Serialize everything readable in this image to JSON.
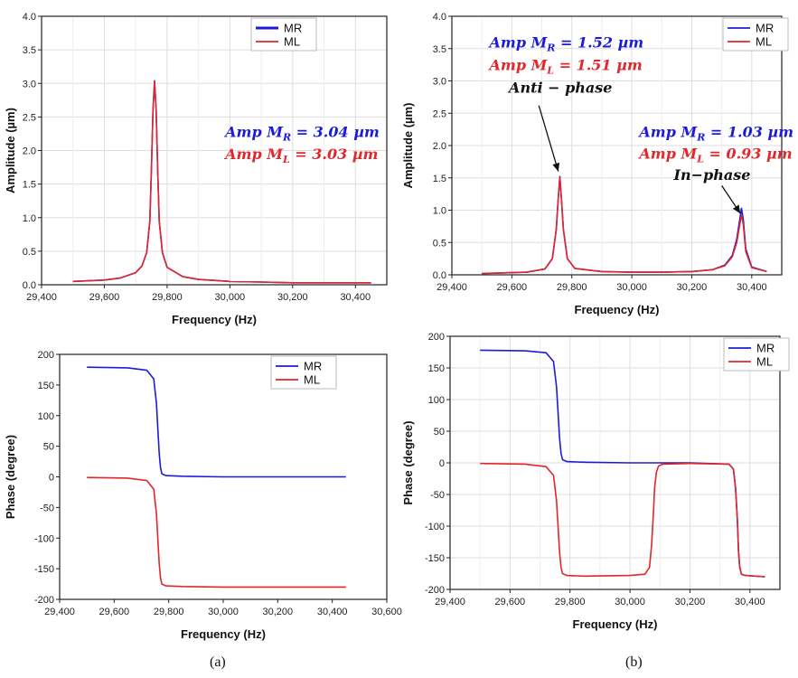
{
  "colors": {
    "mr": "#1c1cd8",
    "ml": "#e0272b",
    "grid": "#dddddd",
    "frame": "#222222"
  },
  "captions": {
    "a": "(a)",
    "b": "(b)"
  },
  "chart_data": [
    {
      "id": "a-amp",
      "type": "line",
      "xlabel": "Frequency (Hz)",
      "ylabel": "Amplitude (µm)",
      "xlim": [
        29400,
        30500
      ],
      "ylim": [
        0,
        4
      ],
      "xticks": [
        29400,
        29600,
        29800,
        30000,
        30200,
        30400
      ],
      "xtick_labels": [
        "29,400",
        "29,600",
        "29,800",
        "30,000",
        "30,200",
        "30,400"
      ],
      "yticks": [
        0,
        0.5,
        1,
        1.5,
        2,
        2.5,
        3,
        3.5,
        4
      ],
      "ytick_labels": [
        "0.0",
        "0.5",
        "1.0",
        "1.5",
        "2.0",
        "2.5",
        "3.0",
        "3.5",
        "4.0"
      ],
      "grid": true,
      "legend": "top-right",
      "series": [
        {
          "name": "MR",
          "color": "#1c1cd8",
          "x": [
            29500,
            29600,
            29650,
            29700,
            29720,
            29735,
            29745,
            29750,
            29755,
            29760,
            29765,
            29770,
            29775,
            29785,
            29800,
            29850,
            29900,
            30000,
            30100,
            30200,
            30300,
            30450
          ],
          "y": [
            0.05,
            0.07,
            0.1,
            0.18,
            0.28,
            0.48,
            0.95,
            1.7,
            2.6,
            3.04,
            2.6,
            1.7,
            0.95,
            0.48,
            0.26,
            0.12,
            0.08,
            0.05,
            0.04,
            0.03,
            0.03,
            0.03
          ]
        },
        {
          "name": "ML",
          "color": "#e0272b",
          "x": [
            29500,
            29600,
            29650,
            29700,
            29720,
            29735,
            29745,
            29750,
            29755,
            29760,
            29765,
            29770,
            29775,
            29785,
            29800,
            29850,
            29900,
            30000,
            30100,
            30200,
            30300,
            30450
          ],
          "y": [
            0.05,
            0.07,
            0.1,
            0.18,
            0.28,
            0.48,
            0.95,
            1.7,
            2.6,
            3.03,
            2.6,
            1.7,
            0.95,
            0.48,
            0.26,
            0.12,
            0.08,
            0.05,
            0.04,
            0.03,
            0.03,
            0.03
          ]
        }
      ],
      "annotations": [
        {
          "text": "Amp M",
          "sub": "R",
          "tail": " = 3.04 µm",
          "color": "#1c1cd8",
          "x": 29985,
          "y": 2.2
        },
        {
          "text": "Amp M",
          "sub": "L",
          "tail": " = 3.03 µm",
          "color": "#e0272b",
          "x": 29985,
          "y": 1.87
        }
      ]
    },
    {
      "id": "b-amp",
      "type": "line",
      "xlabel": "Frequency (Hz)",
      "ylabel": "Amplitude (µm)",
      "xlim": [
        29400,
        30500
      ],
      "ylim": [
        0,
        4
      ],
      "xticks": [
        29400,
        29600,
        29800,
        30000,
        30200,
        30400
      ],
      "xtick_labels": [
        "29,400",
        "29,600",
        "29,800",
        "30,000",
        "30,200",
        "30,400"
      ],
      "yticks": [
        0,
        0.5,
        1,
        1.5,
        2,
        2.5,
        3,
        3.5,
        4
      ],
      "ytick_labels": [
        "0.0",
        "0.5",
        "1.0",
        "1.5",
        "2.0",
        "2.5",
        "3.0",
        "3.5",
        "4.0"
      ],
      "grid": true,
      "legend": "top-right",
      "series": [
        {
          "name": "MR",
          "color": "#1c1cd8",
          "x": [
            29500,
            29650,
            29710,
            29735,
            29748,
            29755,
            29760,
            29765,
            29772,
            29785,
            29810,
            29900,
            30000,
            30100,
            30200,
            30270,
            30310,
            30335,
            30350,
            30360,
            30366,
            30372,
            30380,
            30400,
            30450
          ],
          "y": [
            0.02,
            0.04,
            0.09,
            0.25,
            0.7,
            1.2,
            1.52,
            1.2,
            0.7,
            0.25,
            0.1,
            0.05,
            0.04,
            0.04,
            0.05,
            0.08,
            0.15,
            0.3,
            0.55,
            0.85,
            1.03,
            0.85,
            0.4,
            0.12,
            0.05
          ]
        },
        {
          "name": "ML",
          "color": "#e0272b",
          "x": [
            29500,
            29650,
            29710,
            29735,
            29748,
            29755,
            29760,
            29765,
            29772,
            29785,
            29810,
            29900,
            30000,
            30100,
            30200,
            30270,
            30310,
            30335,
            30350,
            30360,
            30366,
            30372,
            30380,
            30400,
            30450
          ],
          "y": [
            0.02,
            0.04,
            0.09,
            0.25,
            0.7,
            1.2,
            1.51,
            1.2,
            0.7,
            0.25,
            0.1,
            0.05,
            0.04,
            0.04,
            0.05,
            0.08,
            0.14,
            0.28,
            0.5,
            0.77,
            0.93,
            0.77,
            0.36,
            0.11,
            0.05
          ]
        }
      ],
      "annotations": [
        {
          "text": "Amp M",
          "sub": "R",
          "tail": " = 1.52 µm",
          "color": "#1c1cd8",
          "x": 29525,
          "y": 3.52
        },
        {
          "text": "Amp M",
          "sub": "L",
          "tail": " = 1.51 µm",
          "color": "#e0272b",
          "x": 29525,
          "y": 3.17
        },
        {
          "text": "Anti − phase",
          "sub": "",
          "tail": "",
          "color": "#111111",
          "x": 29590,
          "y": 2.82
        },
        {
          "text": "Amp M",
          "sub": "R",
          "tail": " = 1.03 µm",
          "color": "#1c1cd8",
          "x": 30025,
          "y": 2.13
        },
        {
          "text": "Amp M",
          "sub": "L",
          "tail": " = 0.93 µm",
          "color": "#e0272b",
          "x": 30025,
          "y": 1.8
        },
        {
          "text": "In−phase",
          "sub": "",
          "tail": "",
          "color": "#111111",
          "x": 30140,
          "y": 1.47
        }
      ],
      "arrows": [
        {
          "from": [
            29690,
            2.62
          ],
          "to": [
            29755,
            1.6
          ]
        },
        {
          "from": [
            30300,
            1.38
          ],
          "to": [
            30362,
            0.95
          ]
        }
      ]
    },
    {
      "id": "a-phase",
      "type": "line",
      "xlabel": "Frequency (Hz)",
      "ylabel": "Phase (degree)",
      "xlim": [
        29400,
        30600
      ],
      "ylim": [
        -200,
        200
      ],
      "xticks": [
        29400,
        29600,
        29800,
        30000,
        30200,
        30400,
        30600
      ],
      "xtick_labels": [
        "29,400",
        "29,600",
        "29,800",
        "30,000",
        "30,200",
        "30,400",
        "30,600"
      ],
      "yticks": [
        -200,
        -150,
        -100,
        -50,
        0,
        50,
        100,
        150,
        200
      ],
      "ytick_labels": [
        "-200",
        "-150",
        "-100",
        "-50",
        "0",
        "50",
        "100",
        "150",
        "200"
      ],
      "grid": false,
      "legend": "top-right",
      "series": [
        {
          "name": "MR",
          "color": "#1c1cd8",
          "x": [
            29500,
            29650,
            29720,
            29745,
            29755,
            29760,
            29765,
            29770,
            29775,
            29790,
            29850,
            30000,
            30200,
            30450
          ],
          "y": [
            179,
            178,
            174,
            160,
            120,
            80,
            40,
            15,
            5,
            2,
            1,
            0,
            0,
            0
          ]
        },
        {
          "name": "ML",
          "color": "#e0272b",
          "x": [
            29500,
            29650,
            29720,
            29745,
            29755,
            29760,
            29765,
            29770,
            29775,
            29790,
            29850,
            30000,
            30200,
            30450
          ],
          "y": [
            -1,
            -2,
            -6,
            -20,
            -60,
            -100,
            -140,
            -165,
            -175,
            -178,
            -179,
            -180,
            -180,
            -180
          ]
        }
      ]
    },
    {
      "id": "b-phase",
      "type": "line",
      "xlabel": "Frequency (Hz)",
      "ylabel": "Phase (degree)",
      "xlim": [
        29400,
        30500
      ],
      "ylim": [
        -200,
        200
      ],
      "xticks": [
        29400,
        29600,
        29800,
        30000,
        30200,
        30400
      ],
      "xtick_labels": [
        "29,400",
        "29,600",
        "29,800",
        "30,000",
        "30,200",
        "30,400"
      ],
      "yticks": [
        -200,
        -150,
        -100,
        -50,
        0,
        50,
        100,
        150,
        200
      ],
      "ytick_labels": [
        "-200",
        "-150",
        "-100",
        "-50",
        "0",
        "50",
        "100",
        "150",
        "200"
      ],
      "grid": true,
      "legend": "top-right",
      "series": [
        {
          "name": "MR",
          "color": "#1c1cd8",
          "x": [
            29500,
            29650,
            29720,
            29745,
            29755,
            29760,
            29765,
            29770,
            29775,
            29790,
            29850,
            30000,
            30200,
            30330,
            30345,
            30352,
            30358,
            30362,
            30366,
            30372,
            30385,
            30450
          ],
          "y": [
            178,
            177,
            174,
            160,
            120,
            80,
            40,
            15,
            5,
            2,
            1,
            0,
            0,
            -2,
            -10,
            -40,
            -90,
            -140,
            -165,
            -176,
            -178,
            -180
          ]
        },
        {
          "name": "ML",
          "color": "#e0272b",
          "x": [
            29500,
            29650,
            29720,
            29745,
            29755,
            29760,
            29765,
            29770,
            29775,
            29790,
            29850,
            30000,
            30050,
            30065,
            30072,
            30078,
            30082,
            30088,
            30095,
            30110,
            30200,
            30330,
            30345,
            30352,
            30358,
            30362,
            30366,
            30372,
            30385,
            30450
          ],
          "y": [
            -1,
            -2,
            -6,
            -20,
            -60,
            -100,
            -140,
            -165,
            -175,
            -178,
            -179,
            -178,
            -176,
            -165,
            -130,
            -80,
            -40,
            -15,
            -5,
            -2,
            -1,
            -2,
            -10,
            -40,
            -90,
            -140,
            -165,
            -176,
            -178,
            -180
          ]
        }
      ]
    }
  ]
}
